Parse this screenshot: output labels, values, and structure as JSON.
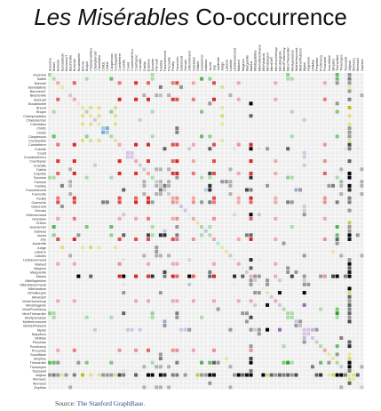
{
  "title": {
    "italic": "Les Misérables",
    "rest": " Co-occurrence"
  },
  "source": {
    "prefix": "Source: ",
    "link": "The Stanford GraphBase",
    "suffix": "."
  },
  "chart_data": {
    "type": "heatmap",
    "title": "Les Misérables Co-occurrence",
    "order": "by group",
    "characters": [
      "Anzelma",
      "Babet",
      "Bahorel",
      "Bamatabois",
      "BaronessT",
      "Blacheville",
      "Bossuet",
      "Boulatruelle",
      "Brevet",
      "Brujon",
      "Champmathieu",
      "Champtercier",
      "Chenildieu",
      "Child1",
      "Child2",
      "Claquesous",
      "Cochepaille",
      "Combeferre",
      "Cosette",
      "Count",
      "CountessDeLo",
      "Courfeyrac",
      "Cravatte",
      "Dahlia",
      "Enjolras",
      "Eponine",
      "Fameuil",
      "Fantine",
      "Fauchelevent",
      "Favourite",
      "Feuilly",
      "Gavroche",
      "Geborand",
      "Gervais",
      "Gillenormand",
      "Grantaire",
      "Gribier",
      "Gueulemer",
      "Isabeau",
      "Javert",
      "Joly",
      "Jondrette",
      "Judge",
      "Labarre",
      "Listolier",
      "LtGillenormand",
      "Mabeuf",
      "Magnon",
      "Marguerite",
      "Marius",
      "MlleBaptistine",
      "MlleGillenormand",
      "MlleVaubois",
      "MmeBurgon",
      "MmeDeR",
      "MmeHucheloup",
      "MmeMagloire",
      "MmePontmercy",
      "MmeThenardier",
      "Montparnasse",
      "MotherInnocent",
      "MotherPlutarch",
      "Myriel",
      "Napoleon",
      "OldMan",
      "Perpetue",
      "Pontmercy",
      "Prouvaire",
      "Scaufflaire",
      "Simplice",
      "Thenardier",
      "Tholomyes",
      "Toussaint",
      "Valjean",
      "Woman1",
      "Woman2",
      "Zephine"
    ],
    "groups": [
      4,
      4,
      8,
      2,
      5,
      3,
      8,
      6,
      2,
      4,
      2,
      1,
      2,
      10,
      10,
      4,
      2,
      8,
      5,
      1,
      1,
      8,
      1,
      3,
      8,
      4,
      3,
      3,
      0,
      3,
      8,
      8,
      1,
      1,
      5,
      8,
      2,
      4,
      0,
      4,
      8,
      7,
      2,
      2,
      3,
      5,
      8,
      5,
      3,
      8,
      1,
      5,
      5,
      2,
      1,
      8,
      1,
      4,
      4,
      4,
      0,
      9,
      1,
      1,
      1,
      3,
      4,
      8,
      2,
      2,
      4,
      3,
      5,
      2,
      2,
      5,
      3
    ],
    "group_colors": [
      "#4e79a7",
      "#9467bd",
      "#bcbd22",
      "#7f7f7f",
      "#2ca02c",
      "#c7c7c7",
      "#ff9896",
      "#17becf",
      "#d62728",
      "#8c564b",
      "#1f77b4"
    ],
    "links": [
      [
        11,
        62,
        1
      ],
      [
        53,
        62,
        8
      ],
      [
        56,
        62,
        10
      ],
      [
        56,
        53,
        6
      ],
      [
        19,
        62,
        1
      ],
      [
        20,
        62,
        1
      ],
      [
        32,
        62,
        1
      ],
      [
        34,
        62,
        1
      ],
      [
        44,
        62,
        1
      ],
      [
        49,
        62,
        1
      ],
      [
        50,
        62,
        1
      ],
      [
        51,
        62,
        1
      ],
      [
        50,
        53,
        1
      ],
      [
        51,
        53,
        1
      ],
      [
        64,
        62,
        2
      ],
      [
        71,
        64,
        2
      ],
      [
        51,
        63,
        1
      ],
      [
        26,
        71,
        3
      ],
      [
        27,
        26,
        3
      ],
      [
        44,
        26,
        3
      ],
      [
        23,
        26,
        3
      ],
      [
        76,
        26,
        3
      ],
      [
        29,
        26,
        3
      ],
      [
        43,
        26,
        1
      ],
      [
        42,
        26,
        1
      ],
      [
        46,
        73,
        9
      ],
      [
        21,
        73,
        3
      ],
      [
        8,
        73,
        10
      ],
      [
        45,
        73,
        1
      ],
      [
        65,
        73,
        3
      ],
      [
        54,
        73,
        3
      ],
      [
        52,
        73,
        3
      ],
      [
        55,
        73,
        1
      ],
      [
        14,
        73,
        1
      ],
      [
        24,
        73,
        17
      ],
      [
        25,
        73,
        8
      ],
      [
        17,
        73,
        4
      ],
      [
        31,
        73,
        2
      ],
      [
        60,
        73,
        4
      ],
      [
        36,
        73,
        5
      ],
      [
        72,
        73,
        2
      ],
      [
        58,
        73,
        3
      ],
      [
        59,
        73,
        1
      ],
      [
        3,
        73,
        1
      ],
      [
        39,
        73,
        17
      ],
      [
        28,
        73,
        5
      ],
      [
        48,
        73,
        6
      ],
      [
        4,
        73,
        1
      ],
      [
        12,
        73,
        2
      ],
      [
        10,
        73,
        2
      ],
      [
        16,
        73,
        2
      ],
      [
        47,
        73,
        1
      ],
      [
        6,
        73,
        2
      ],
      [
        37,
        73,
        1
      ],
      [
        2,
        73,
        1
      ],
      [
        0,
        73,
        1
      ],
      [
        1,
        73,
        2
      ],
      [
        13,
        73,
        1
      ],
      [
        15,
        73,
        1
      ],
      [
        73,
        71,
        7
      ],
      [
        73,
        66,
        5
      ],
      [
        73,
        57,
        2
      ],
      [
        73,
        52,
        31
      ],
      [
        73,
        49,
        19
      ],
      [
        73,
        47,
        3
      ],
      [
        73,
        40,
        6
      ],
      [
        73,
        33,
        1
      ],
      [
        73,
        30,
        2
      ],
      [
        73,
        27,
        9
      ],
      [
        73,
        21,
        1
      ],
      [
        73,
        18,
        2
      ],
      [
        70,
        73,
        12
      ],
      [
        58,
        70,
        16
      ],
      [
        70,
        59,
        1
      ],
      [
        70,
        57,
        3
      ],
      [
        70,
        68,
        1
      ],
      [
        70,
        66,
        4
      ],
      [
        70,
        49,
        17
      ],
      [
        70,
        40,
        3
      ],
      [
        70,
        31,
        2
      ],
      [
        70,
        9,
        3
      ],
      [
        70,
        37,
        5
      ],
      [
        70,
        1,
        4
      ],
      [
        70,
        15,
        3
      ],
      [
        70,
        0,
        4
      ],
      [
        70,
        41,
        1
      ],
      [
        70,
        2,
        1
      ],
      [
        49,
        18,
        21
      ],
      [
        49,
        34,
        12
      ],
      [
        49,
        45,
        5
      ],
      [
        49,
        50,
        1
      ],
      [
        49,
        51,
        1
      ],
      [
        49,
        21,
        21
      ],
      [
        49,
        17,
        15
      ],
      [
        49,
        30,
        9
      ],
      [
        49,
        24,
        6
      ],
      [
        49,
        7,
        7
      ],
      [
        49,
        40,
        8
      ],
      [
        49,
        35,
        4
      ],
      [
        49,
        67,
        2
      ],
      [
        49,
        31,
        4
      ],
      [
        49,
        25,
        5
      ],
      [
        49,
        10,
        3
      ],
      [
        49,
        55,
        1
      ],
      [
        49,
        28,
        2
      ],
      [
        49,
        47,
        3
      ],
      [
        49,
        69,
        4
      ],
      [
        49,
        59,
        4
      ],
      [
        49,
        72,
        2
      ],
      [
        39,
        73,
        17
      ],
      [
        39,
        28,
        5
      ],
      [
        39,
        18,
        3
      ],
      [
        39,
        48,
        2
      ],
      [
        39,
        70,
        4
      ],
      [
        39,
        37,
        1
      ],
      [
        39,
        1,
        2
      ],
      [
        39,
        15,
        2
      ],
      [
        39,
        49,
        3
      ],
      [
        39,
        24,
        4
      ],
      [
        39,
        31,
        2
      ],
      [
        18,
        28,
        3
      ],
      [
        18,
        58,
        3
      ],
      [
        18,
        72,
        1
      ],
      [
        18,
        53,
        1
      ],
      [
        18,
        51,
        2
      ],
      [
        34,
        18,
        6
      ],
      [
        34,
        51,
        9
      ],
      [
        45,
        51,
        1
      ],
      [
        45,
        18,
        2
      ],
      [
        34,
        45,
        4
      ],
      [
        21,
        17,
        13
      ],
      [
        21,
        30,
        4
      ],
      [
        21,
        24,
        6
      ],
      [
        21,
        6,
        12
      ],
      [
        21,
        40,
        5
      ],
      [
        21,
        35,
        1
      ],
      [
        21,
        31,
        7
      ],
      [
        21,
        2,
        6
      ],
      [
        21,
        67,
        2
      ],
      [
        21,
        55,
        1
      ],
      [
        24,
        17,
        15
      ],
      [
        24,
        30,
        6
      ],
      [
        24,
        6,
        10
      ],
      [
        24,
        40,
        5
      ],
      [
        24,
        35,
        3
      ],
      [
        24,
        31,
        7
      ],
      [
        24,
        2,
        4
      ],
      [
        24,
        67,
        4
      ],
      [
        24,
        55,
        1
      ],
      [
        24,
        46,
        1
      ],
      [
        17,
        30,
        5
      ],
      [
        17,
        6,
        9
      ],
      [
        17,
        40,
        5
      ],
      [
        17,
        35,
        1
      ],
      [
        17,
        31,
        5
      ],
      [
        17,
        2,
        3
      ],
      [
        17,
        67,
        2
      ],
      [
        17,
        46,
        2
      ],
      [
        6,
        30,
        6
      ],
      [
        6,
        40,
        7
      ],
      [
        6,
        35,
        3
      ],
      [
        6,
        31,
        5
      ],
      [
        6,
        2,
        4
      ],
      [
        6,
        67,
        3
      ],
      [
        6,
        55,
        1
      ],
      [
        6,
        46,
        1
      ],
      [
        40,
        30,
        5
      ],
      [
        40,
        35,
        2
      ],
      [
        40,
        31,
        3
      ],
      [
        40,
        2,
        5
      ],
      [
        40,
        67,
        2
      ],
      [
        40,
        55,
        1
      ],
      [
        40,
        46,
        1
      ],
      [
        35,
        30,
        1
      ],
      [
        35,
        31,
        2
      ],
      [
        35,
        2,
        1
      ],
      [
        35,
        67,
        1
      ],
      [
        35,
        55,
        1
      ],
      [
        31,
        30,
        2
      ],
      [
        31,
        2,
        5
      ],
      [
        31,
        67,
        2
      ],
      [
        31,
        55,
        1
      ],
      [
        31,
        46,
        1
      ],
      [
        31,
        39,
        2
      ],
      [
        31,
        58,
        2
      ],
      [
        31,
        59,
        1
      ],
      [
        31,
        37,
        1
      ],
      [
        31,
        25,
        1
      ],
      [
        2,
        30,
        3
      ],
      [
        2,
        67,
        1
      ],
      [
        2,
        55,
        1
      ],
      [
        2,
        46,
        1
      ],
      [
        67,
        30,
        2
      ],
      [
        46,
        30,
        1
      ],
      [
        46,
        55,
        1
      ],
      [
        30,
        55,
        1
      ],
      [
        25,
        58,
        2
      ],
      [
        25,
        70,
        1
      ],
      [
        25,
        37,
        1
      ],
      [
        25,
        1,
        1
      ],
      [
        25,
        0,
        1
      ],
      [
        25,
        9,
        1
      ],
      [
        25,
        15,
        1
      ],
      [
        25,
        59,
        1
      ],
      [
        25,
        49,
        5
      ],
      [
        25,
        39,
        1
      ],
      [
        28,
        48,
        4
      ],
      [
        28,
        60,
        3
      ],
      [
        28,
        18,
        3
      ],
      [
        28,
        73,
        5
      ],
      [
        28,
        61,
        1
      ],
      [
        60,
        48,
        1
      ],
      [
        60,
        73,
        2
      ],
      [
        3,
        27,
        2
      ],
      [
        3,
        73,
        1
      ],
      [
        3,
        42,
        2
      ],
      [
        42,
        10,
        3
      ],
      [
        42,
        12,
        1
      ],
      [
        42,
        16,
        1
      ],
      [
        42,
        8,
        1
      ],
      [
        10,
        12,
        2
      ],
      [
        10,
        16,
        2
      ],
      [
        10,
        8,
        2
      ],
      [
        12,
        16,
        2
      ],
      [
        12,
        8,
        2
      ],
      [
        16,
        8,
        2
      ],
      [
        68,
        73,
        1
      ],
      [
        68,
        27,
        1
      ],
      [
        69,
        73,
        3
      ],
      [
        69,
        27,
        2
      ],
      [
        69,
        43,
        1
      ],
      [
        74,
        73,
        2
      ],
      [
        75,
        73,
        3
      ],
      [
        75,
        18,
        1
      ],
      [
        75,
        39,
        1
      ],
      [
        72,
        73,
        1
      ],
      [
        72,
        18,
        2
      ],
      [
        0,
        58,
        2
      ],
      [
        0,
        70,
        3
      ],
      [
        1,
        58,
        1
      ],
      [
        1,
        37,
        5
      ],
      [
        1,
        15,
        4
      ],
      [
        1,
        9,
        1
      ],
      [
        1,
        59,
        1
      ],
      [
        37,
        15,
        4
      ],
      [
        37,
        9,
        3
      ],
      [
        37,
        59,
        1
      ],
      [
        15,
        9,
        2
      ],
      [
        15,
        59,
        1
      ],
      [
        9,
        59,
        1
      ],
      [
        58,
        59,
        1
      ],
      [
        58,
        48,
        1
      ],
      [
        41,
        70,
        1
      ],
      [
        41,
        57,
        1
      ],
      [
        57,
        66,
        1
      ],
      [
        66,
        49,
        1
      ],
      [
        13,
        14,
        3
      ],
      [
        13,
        31,
        2
      ],
      [
        14,
        31,
        2
      ],
      [
        5,
        26,
        3
      ],
      [
        5,
        27,
        2
      ],
      [
        5,
        44,
        3
      ],
      [
        5,
        23,
        3
      ],
      [
        5,
        76,
        3
      ],
      [
        5,
        29,
        3
      ],
      [
        27,
        44,
        3
      ],
      [
        27,
        23,
        3
      ],
      [
        27,
        76,
        3
      ],
      [
        27,
        29,
        3
      ],
      [
        27,
        71,
        3
      ],
      [
        44,
        23,
        3
      ],
      [
        44,
        76,
        3
      ],
      [
        44,
        29,
        3
      ],
      [
        23,
        76,
        3
      ],
      [
        23,
        29,
        3
      ],
      [
        76,
        29,
        3
      ],
      [
        71,
        44,
        3
      ],
      [
        71,
        23,
        3
      ],
      [
        71,
        76,
        3
      ],
      [
        71,
        29,
        3
      ],
      [
        27,
        28,
        2
      ],
      [
        27,
        39,
        5
      ],
      [
        27,
        53,
        1
      ],
      [
        38,
        73,
        1
      ],
      [
        38,
        28,
        1
      ],
      [
        22,
        62,
        1
      ],
      [
        63,
        62,
        1
      ],
      [
        32,
        3,
        1
      ],
      [
        33,
        73,
        1
      ],
      [
        33,
        62,
        1
      ],
      [
        65,
        62,
        1
      ],
      [
        47,
        49,
        1
      ],
      [
        47,
        58,
        1
      ],
      [
        7,
        70,
        1
      ],
      [
        7,
        39,
        1
      ],
      [
        53,
        73,
        3
      ],
      [
        56,
        73,
        3
      ],
      [
        61,
        28,
        1
      ],
      [
        61,
        60,
        1
      ],
      [
        19,
        20,
        1
      ],
      [
        20,
        62,
        1
      ],
      [
        11,
        22,
        1
      ],
      [
        54,
        73,
        1
      ],
      [
        50,
        56,
        1
      ]
    ]
  }
}
